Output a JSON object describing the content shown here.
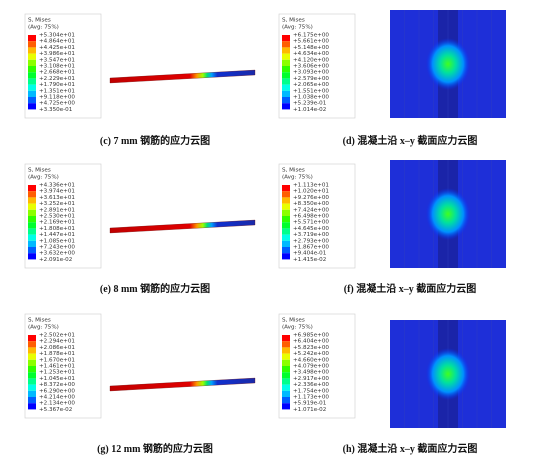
{
  "panels": [
    {
      "legend_title": [
        "S, Mises",
        "(Avg: 75%)"
      ],
      "legend_values": [
        "+5.304e+01",
        "+4.864e+01",
        "+4.425e+01",
        "+3.986e+01",
        "+3.547e+01",
        "+3.108e+01",
        "+2.668e+01",
        "+2.229e+01",
        "+1.790e+01",
        "+1.351e+01",
        "+9.118e+00",
        "+4.725e+00",
        "+3.350e-01"
      ],
      "caption": "(c) 7 mm 钢筋的应力云图"
    },
    {
      "legend_title": [
        "S, Mises",
        "(Avg: 75%)"
      ],
      "legend_values": [
        "+6.175e+00",
        "+5.661e+00",
        "+5.148e+00",
        "+4.634e+00",
        "+4.120e+00",
        "+3.606e+00",
        "+3.093e+00",
        "+2.579e+00",
        "+2.065e+00",
        "+1.551e+00",
        "+1.038e+00",
        "+5.239e-01",
        "+1.014e-02"
      ],
      "caption": "(d)  混凝土沿 x–y 截面应力云图"
    },
    {
      "legend_title": [
        "S, Mises",
        "(Avg: 75%)"
      ],
      "legend_values": [
        "+4.336e+01",
        "+3.974e+01",
        "+3.613e+01",
        "+3.252e+01",
        "+2.891e+01",
        "+2.530e+01",
        "+2.169e+01",
        "+1.808e+01",
        "+1.447e+01",
        "+1.085e+01",
        "+7.243e+00",
        "+3.632e+00",
        "+2.091e-02"
      ],
      "caption": "(e) 8 mm 钢筋的应力云图"
    },
    {
      "legend_title": [
        "S, Mises",
        "(Avg: 75%)"
      ],
      "legend_values": [
        "+1.113e+01",
        "+1.020e+01",
        "+9.276e+00",
        "+8.350e+00",
        "+7.424e+00",
        "+6.498e+00",
        "+5.571e+00",
        "+4.645e+00",
        "+3.719e+00",
        "+2.793e+00",
        "+1.867e+00",
        "+9.404e-01",
        "+1.415e-02"
      ],
      "caption": "(f)  混凝土沿 x–y 截面应力云图"
    },
    {
      "legend_title": [
        "S, Mises",
        "(Avg: 75%)"
      ],
      "legend_values": [
        "+2.502e+01",
        "+2.294e+01",
        "+2.086e+01",
        "+1.878e+01",
        "+1.670e+01",
        "+1.461e+01",
        "+1.253e+01",
        "+1.045e+01",
        "+8.372e+00",
        "+6.290e+00",
        "+4.214e+00",
        "+2.134e+00",
        "+5.367e-02"
      ],
      "caption": "(g) 12 mm 钢筋的应力云图"
    },
    {
      "legend_title": [
        "S, Mises",
        "(Avg: 75%)"
      ],
      "legend_values": [
        "+6.985e+00",
        "+6.404e+00",
        "+5.823e+00",
        "+5.242e+00",
        "+4.660e+00",
        "+4.079e+00",
        "+3.498e+00",
        "+2.917e+00",
        "+2.336e+00",
        "+1.754e+00",
        "+1.173e+00",
        "+5.919e-01",
        "+1.071e-02"
      ],
      "caption": "(h)  混凝土沿 x–y 截面应力云图"
    }
  ]
}
